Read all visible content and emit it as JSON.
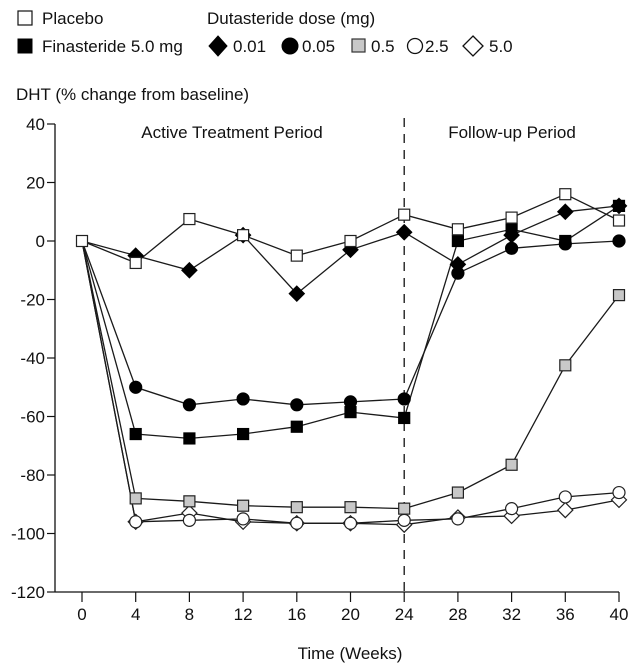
{
  "chart_data": {
    "type": "line",
    "title": "",
    "xlabel": "Time (Weeks)",
    "ylabel": "DHT (% change from baseline)",
    "xlim": [
      0,
      40
    ],
    "ylim": [
      -120,
      40
    ],
    "xticks": [
      0,
      4,
      8,
      12,
      16,
      20,
      24,
      28,
      32,
      36,
      40
    ],
    "yticks": [
      40,
      20,
      0,
      -20,
      -40,
      -60,
      -80,
      -100,
      -120
    ],
    "grid": false,
    "divider": {
      "x": 24,
      "style": "dashed"
    },
    "annotations": [
      {
        "text": "Active Treatment Period",
        "region": "left"
      },
      {
        "text": "Follow-up Period",
        "region": "right"
      }
    ],
    "legend": {
      "placement": "top",
      "group_title": "Dutasteride dose (mg)",
      "entries": [
        {
          "key": "placebo",
          "label": "Placebo"
        },
        {
          "key": "finasteride",
          "label": "Finasteride 5.0 mg"
        },
        {
          "key": "d001",
          "label": "0.01"
        },
        {
          "key": "d005",
          "label": "0.05"
        },
        {
          "key": "d05",
          "label": "0.5"
        },
        {
          "key": "d25",
          "label": "2.5"
        },
        {
          "key": "d50",
          "label": "5.0"
        }
      ]
    },
    "x": [
      0,
      4,
      8,
      12,
      16,
      20,
      24,
      28,
      32,
      36,
      40
    ],
    "series": [
      {
        "key": "placebo",
        "name": "Placebo",
        "marker": "square",
        "fill": "#ffffff",
        "values": [
          0,
          -7.5,
          7.5,
          2,
          -5,
          0,
          9,
          4,
          8,
          16,
          7
        ]
      },
      {
        "key": "finasteride",
        "name": "Finasteride 5.0 mg",
        "marker": "square",
        "fill": "#000000",
        "values": [
          0,
          -66,
          -67.5,
          -66,
          -63.5,
          -58.5,
          -60.5,
          0,
          4,
          0,
          12
        ]
      },
      {
        "key": "d001",
        "name": "Dutasteride 0.01 mg",
        "marker": "diamond",
        "fill": "#000000",
        "values": [
          0,
          -5,
          -10,
          2,
          -18,
          -3,
          3,
          -8,
          2,
          10,
          12
        ]
      },
      {
        "key": "d005",
        "name": "Dutasteride 0.05 mg",
        "marker": "circle",
        "fill": "#000000",
        "values": [
          0,
          -50,
          -56,
          -54,
          -56,
          -55,
          -54,
          -11,
          -2.5,
          -1,
          0
        ]
      },
      {
        "key": "d05",
        "name": "Dutasteride 0.5 mg",
        "marker": "square",
        "fill": "#c8c8c8",
        "values": [
          0,
          -88,
          -89,
          -90.5,
          -91,
          -91,
          -91.5,
          -86,
          -76.5,
          -42.5,
          -18.5
        ]
      },
      {
        "key": "d25",
        "name": "Dutasteride 2.5 mg",
        "marker": "circle",
        "fill": "#ffffff",
        "values": [
          0,
          -96,
          -95.5,
          -95,
          -96.5,
          -96.5,
          -95.5,
          -95,
          -91.5,
          -87.5,
          -86
        ]
      },
      {
        "key": "d50",
        "name": "Dutasteride 5.0 mg",
        "marker": "diamond",
        "fill": "#ffffff",
        "values": [
          0,
          -96,
          -93,
          -96,
          -96.5,
          -96.5,
          -97,
          -94.5,
          -94,
          -92,
          -88.5
        ]
      }
    ]
  }
}
